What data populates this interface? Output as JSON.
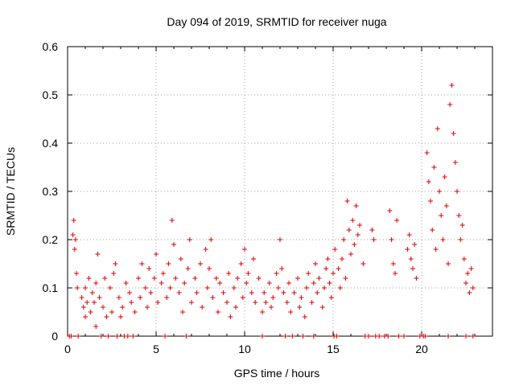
{
  "chart_data": {
    "type": "scatter",
    "title": "Day 094 of 2019, SRMTID for receiver nuga",
    "xlabel": "GPS time / hours",
    "ylabel": "SRMTID / TECUs",
    "xlim": [
      0,
      24
    ],
    "ylim": [
      0,
      0.6
    ],
    "x_ticks": [
      0,
      5,
      10,
      15,
      20
    ],
    "y_ticks": [
      0,
      0.1,
      0.2,
      0.3,
      0.4,
      0.5,
      0.6
    ],
    "x_tick_labels": [
      "0",
      "5",
      "10",
      "15",
      "20"
    ],
    "y_tick_labels": [
      "0",
      "0.1",
      "0.2",
      "0.3",
      "0.4",
      "0.5",
      "0.6"
    ],
    "grid": true,
    "marker": "+",
    "marker_color": "#e00000",
    "series": [
      {
        "name": "SRMTID",
        "approximate": true,
        "points": [
          [
            0.1,
            0.0
          ],
          [
            0.2,
            0.0
          ],
          [
            0.3,
            0.21
          ],
          [
            0.35,
            0.24
          ],
          [
            0.4,
            0.18
          ],
          [
            0.45,
            0.2
          ],
          [
            0.5,
            0.13
          ],
          [
            0.55,
            0.1
          ],
          [
            0.6,
            0.0
          ],
          [
            0.8,
            0.08
          ],
          [
            0.9,
            0.06
          ],
          [
            1.0,
            0.04
          ],
          [
            1.0,
            0.1
          ],
          [
            1.1,
            0.07
          ],
          [
            1.2,
            0.12
          ],
          [
            1.3,
            0.05
          ],
          [
            1.4,
            0.09
          ],
          [
            1.5,
            0.07
          ],
          [
            1.6,
            0.02
          ],
          [
            1.6,
            0.11
          ],
          [
            1.7,
            0.17
          ],
          [
            1.8,
            0.08
          ],
          [
            2.0,
            0.06
          ],
          [
            2.1,
            0.12
          ],
          [
            2.2,
            0.04
          ],
          [
            2.4,
            0.1
          ],
          [
            2.5,
            0.05
          ],
          [
            2.6,
            0.13
          ],
          [
            2.7,
            0.15
          ],
          [
            2.9,
            0.08
          ],
          [
            3.0,
            0.04
          ],
          [
            3.1,
            0.06
          ],
          [
            3.3,
            0.11
          ],
          [
            3.5,
            0.09
          ],
          [
            3.6,
            0.07
          ],
          [
            3.8,
            0.05
          ],
          [
            4.0,
            0.12
          ],
          [
            4.1,
            0.08
          ],
          [
            4.2,
            0.15
          ],
          [
            4.4,
            0.1
          ],
          [
            4.5,
            0.06
          ],
          [
            4.6,
            0.14
          ],
          [
            4.7,
            0.09
          ],
          [
            4.9,
            0.12
          ],
          [
            5.0,
            0.17
          ],
          [
            5.1,
            0.07
          ],
          [
            5.3,
            0.11
          ],
          [
            5.4,
            0.13
          ],
          [
            5.6,
            0.08
          ],
          [
            5.7,
            0.15
          ],
          [
            5.8,
            0.1
          ],
          [
            5.9,
            0.24
          ],
          [
            6.0,
            0.19
          ],
          [
            6.1,
            0.12
          ],
          [
            6.3,
            0.09
          ],
          [
            6.4,
            0.16
          ],
          [
            6.5,
            0.05
          ],
          [
            6.6,
            0.11
          ],
          [
            6.8,
            0.14
          ],
          [
            6.9,
            0.2
          ],
          [
            7.0,
            0.07
          ],
          [
            7.2,
            0.12
          ],
          [
            7.3,
            0.09
          ],
          [
            7.5,
            0.15
          ],
          [
            7.6,
            0.06
          ],
          [
            7.8,
            0.18
          ],
          [
            7.9,
            0.1
          ],
          [
            8.0,
            0.14
          ],
          [
            8.1,
            0.2
          ],
          [
            8.2,
            0.08
          ],
          [
            8.4,
            0.12
          ],
          [
            8.5,
            0.05
          ],
          [
            8.6,
            0.11
          ],
          [
            8.8,
            0.09
          ],
          [
            9.0,
            0.07
          ],
          [
            9.1,
            0.13
          ],
          [
            9.2,
            0.04
          ],
          [
            9.4,
            0.1
          ],
          [
            9.5,
            0.06
          ],
          [
            9.6,
            0.12
          ],
          [
            9.8,
            0.15
          ],
          [
            9.9,
            0.08
          ],
          [
            10.0,
            0.18
          ],
          [
            10.1,
            0.11
          ],
          [
            10.2,
            0.13
          ],
          [
            10.4,
            0.09
          ],
          [
            10.5,
            0.16
          ],
          [
            10.6,
            0.07
          ],
          [
            10.8,
            0.12
          ],
          [
            11.0,
            0.05
          ],
          [
            11.1,
            0.09
          ],
          [
            11.2,
            0.07
          ],
          [
            11.4,
            0.11
          ],
          [
            11.5,
            0.06
          ],
          [
            11.6,
            0.08
          ],
          [
            11.8,
            0.13
          ],
          [
            11.9,
            0.1
          ],
          [
            12.0,
            0.2
          ],
          [
            12.1,
            0.14
          ],
          [
            12.2,
            0.09
          ],
          [
            12.4,
            0.07
          ],
          [
            12.5,
            0.11
          ],
          [
            12.6,
            0.05
          ],
          [
            12.8,
            0.09
          ],
          [
            13.0,
            0.12
          ],
          [
            13.1,
            0.06
          ],
          [
            13.2,
            0.08
          ],
          [
            13.4,
            0.04
          ],
          [
            13.5,
            0.1
          ],
          [
            13.6,
            0.13
          ],
          [
            13.8,
            0.07
          ],
          [
            13.9,
            0.11
          ],
          [
            14.0,
            0.15
          ],
          [
            14.1,
            0.09
          ],
          [
            14.2,
            0.12
          ],
          [
            14.4,
            0.06
          ],
          [
            14.5,
            0.1
          ],
          [
            14.6,
            0.14
          ],
          [
            14.7,
            0.16
          ],
          [
            14.8,
            0.11
          ],
          [
            14.9,
            0.08
          ],
          [
            15.0,
            0.13
          ],
          [
            15.1,
            0.18
          ],
          [
            15.3,
            0.14
          ],
          [
            15.4,
            0.1
          ],
          [
            15.5,
            0.16
          ],
          [
            15.6,
            0.2
          ],
          [
            15.7,
            0.12
          ],
          [
            15.8,
            0.28
          ],
          [
            15.9,
            0.22
          ],
          [
            16.0,
            0.17
          ],
          [
            16.1,
            0.24
          ],
          [
            16.2,
            0.19
          ],
          [
            16.3,
            0.27
          ],
          [
            16.4,
            0.21
          ],
          [
            16.5,
            0.23
          ],
          [
            16.7,
            0.15
          ],
          [
            17.2,
            0.22
          ],
          [
            17.3,
            0.2
          ],
          [
            18.2,
            0.26
          ],
          [
            18.3,
            0.2
          ],
          [
            18.4,
            0.15
          ],
          [
            18.5,
            0.13
          ],
          [
            18.6,
            0.24
          ],
          [
            19.2,
            0.18
          ],
          [
            19.3,
            0.21
          ],
          [
            19.4,
            0.16
          ],
          [
            19.5,
            0.14
          ],
          [
            19.6,
            0.19
          ],
          [
            19.7,
            0.12
          ],
          [
            20.3,
            0.38
          ],
          [
            20.4,
            0.32
          ],
          [
            20.5,
            0.28
          ],
          [
            20.6,
            0.22
          ],
          [
            20.7,
            0.35
          ],
          [
            20.8,
            0.18
          ],
          [
            20.9,
            0.43
          ],
          [
            21.0,
            0.3
          ],
          [
            21.1,
            0.25
          ],
          [
            21.2,
            0.2
          ],
          [
            21.3,
            0.33
          ],
          [
            21.4,
            0.27
          ],
          [
            21.5,
            0.15
          ],
          [
            21.6,
            0.48
          ],
          [
            21.7,
            0.52
          ],
          [
            21.8,
            0.42
          ],
          [
            21.9,
            0.36
          ],
          [
            22.0,
            0.3
          ],
          [
            22.1,
            0.25
          ],
          [
            22.2,
            0.2
          ],
          [
            22.3,
            0.23
          ],
          [
            22.4,
            0.16
          ],
          [
            22.5,
            0.11
          ],
          [
            22.6,
            0.13
          ],
          [
            22.7,
            0.09
          ],
          [
            22.8,
            0.14
          ],
          [
            22.9,
            0.1
          ],
          [
            1.9,
            0.0
          ],
          [
            2.3,
            0.0
          ],
          [
            2.8,
            0.0
          ],
          [
            3.2,
            0.0
          ],
          [
            3.4,
            0.0
          ],
          [
            3.7,
            0.0
          ],
          [
            5.5,
            0.0
          ],
          [
            6.7,
            0.0
          ],
          [
            11.0,
            0.0
          ],
          [
            12.3,
            0.0
          ],
          [
            12.7,
            0.0
          ],
          [
            13.3,
            0.0
          ],
          [
            13.9,
            0.0
          ],
          [
            15.05,
            0.0
          ],
          [
            15.2,
            0.0
          ],
          [
            16.8,
            0.0
          ],
          [
            17.0,
            0.0
          ],
          [
            17.4,
            0.0
          ],
          [
            17.6,
            0.0
          ],
          [
            17.9,
            0.0
          ],
          [
            18.1,
            0.0
          ],
          [
            18.7,
            0.0
          ],
          [
            19.0,
            0.0
          ],
          [
            19.9,
            0.0
          ],
          [
            20.1,
            0.0
          ],
          [
            20.2,
            0.0
          ],
          [
            21.5,
            0.0
          ],
          [
            22.5,
            0.0
          ],
          [
            22.9,
            0.0
          ]
        ]
      }
    ]
  }
}
